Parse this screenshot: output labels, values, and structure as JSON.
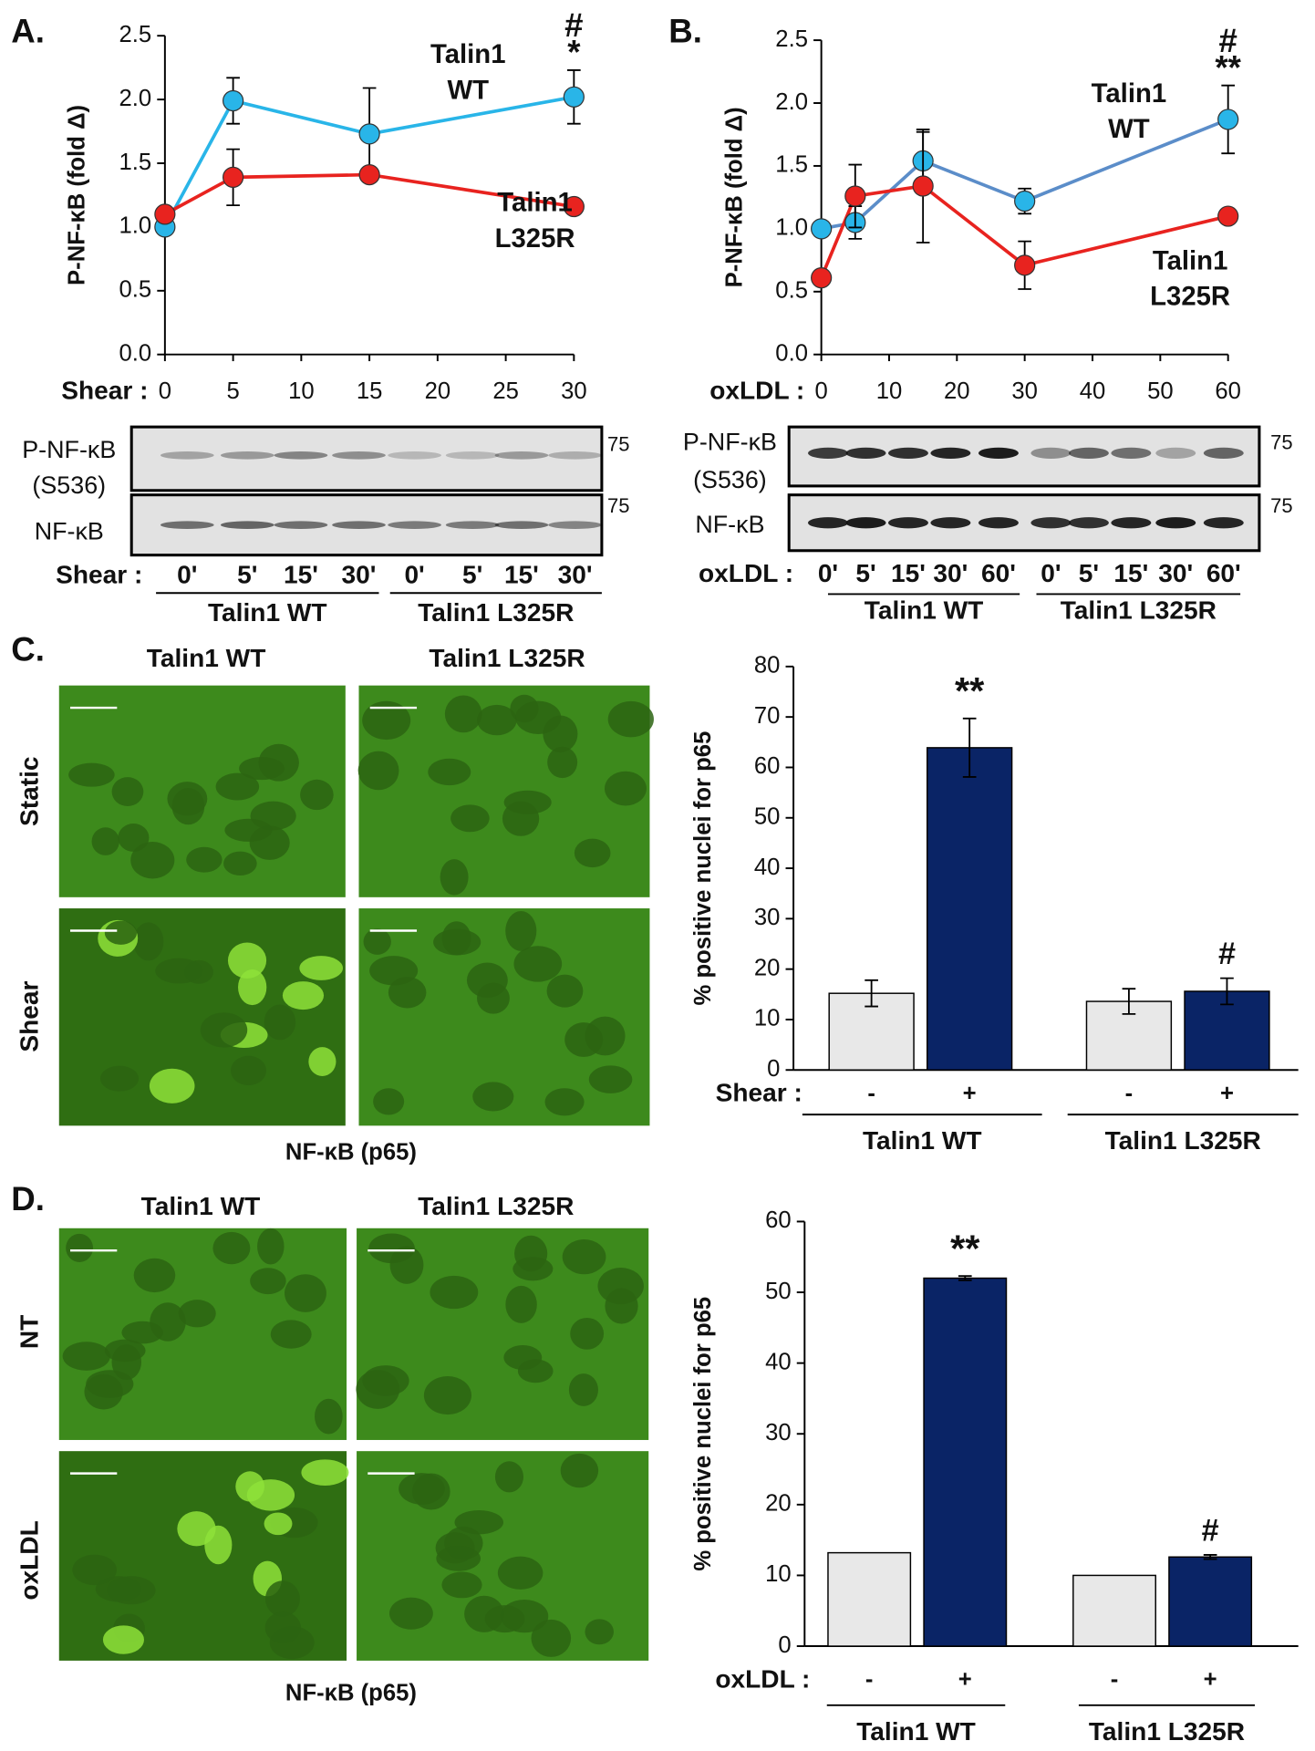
{
  "chart_data": [
    {
      "type": "line",
      "panel_label": "A.",
      "y_label": "P-NF-κB (fold Δ)",
      "x_label": "Shear :",
      "x": [
        0,
        5,
        15,
        30
      ],
      "xlim": [
        0,
        30
      ],
      "xticks": [
        0,
        5,
        10,
        15,
        20,
        25,
        30
      ],
      "ylim": [
        0,
        2.5
      ],
      "yticks": [
        {
          "value": 0,
          "label": "0.0"
        },
        0.5,
        {
          "value": 1,
          "label": "1.0"
        },
        1.5,
        {
          "value": 2,
          "label": "2.0"
        },
        2.5
      ],
      "series": [
        {
          "name": "Talin1 WT",
          "color": "#29b5e8",
          "values": [
            1.0,
            1.99,
            1.73,
            2.02
          ],
          "errors": [
            0,
            0.18,
            0.36,
            0.21
          ],
          "annotations": [
            null,
            null,
            null,
            [
              "#",
              "*"
            ]
          ]
        },
        {
          "name": "Talin1 L325R",
          "color": "#e8231f",
          "values": [
            1.1,
            1.39,
            1.41,
            1.16
          ],
          "errors": [
            0,
            0.22,
            0,
            0
          ]
        }
      ]
    },
    {
      "type": "line",
      "panel_label": "B.",
      "y_label": "P-NF-κB (fold Δ)",
      "x_label": "oxLDL :",
      "x": [
        0,
        5,
        15,
        30,
        60
      ],
      "xlim": [
        0,
        60
      ],
      "xticks": [
        0,
        10,
        20,
        30,
        40,
        50,
        60
      ],
      "ylim": [
        0,
        2.5
      ],
      "yticks": [
        {
          "value": 0,
          "label": "0.0"
        },
        0.5,
        {
          "value": 1,
          "label": "1.0"
        },
        1.5,
        {
          "value": 2,
          "label": "2.0"
        },
        2.5
      ],
      "series": [
        {
          "name": "Talin1 WT",
          "color": "#29b5e8",
          "line_color": "#5b8dc9",
          "values": [
            1.0,
            1.05,
            1.54,
            1.22,
            1.87
          ],
          "errors": [
            0,
            0.13,
            0.23,
            0.1,
            0.27
          ],
          "annotations": [
            null,
            null,
            null,
            null,
            [
              "#",
              "**"
            ]
          ]
        },
        {
          "name": "Talin1 L325R",
          "color": "#e8231f",
          "values": [
            0.61,
            1.26,
            1.34,
            0.71,
            1.1
          ],
          "errors": [
            0,
            0.25,
            0.45,
            0.19,
            0
          ]
        }
      ]
    },
    {
      "type": "bar",
      "panel_label": "C.",
      "y_label": "% positive nuclei for p65",
      "x_label": "Shear :",
      "categories": [
        "Talin1 WT",
        "Talin1 L325R"
      ],
      "ylim": [
        0,
        80
      ],
      "yticks": [
        0,
        10,
        20,
        30,
        40,
        50,
        60,
        70,
        80
      ],
      "series": [
        {
          "name": "-",
          "color": "#e8e8e8",
          "values": [
            15.2,
            13.6
          ],
          "errors": [
            2.6,
            2.5
          ]
        },
        {
          "name": "+",
          "color": "#0a2466",
          "values": [
            63.9,
            15.6
          ],
          "errors": [
            5.8,
            2.6
          ],
          "annotations": [
            "**",
            "#"
          ]
        }
      ]
    },
    {
      "type": "bar",
      "panel_label": "D.",
      "y_label": "% positive nuclei for p65",
      "x_label": "oxLDL :",
      "categories": [
        "Talin1 WT",
        "Talin1 L325R"
      ],
      "ylim": [
        0,
        60
      ],
      "yticks": [
        0,
        10,
        20,
        30,
        40,
        50,
        60
      ],
      "series": [
        {
          "name": "-",
          "color": "#e8e8e8",
          "values": [
            13.2,
            10.0
          ]
        },
        {
          "name": "+",
          "color": "#0a2466",
          "values": [
            52.0,
            12.6
          ],
          "errors": [
            0.3,
            0.3
          ],
          "annotations": [
            "**",
            "#"
          ]
        }
      ]
    }
  ],
  "blots": [
    {
      "rows": [
        {
          "label": [
            "P-NF-κB",
            "(S536)"
          ],
          "marker": "75"
        },
        {
          "label": [
            "NF-κB"
          ],
          "marker": "75"
        }
      ],
      "treatment": "Shear :",
      "lanes": [
        "0'",
        "5'",
        "15'",
        "30'",
        "0'",
        "5'",
        "15'",
        "30'"
      ],
      "groups": [
        "Talin1 WT",
        "Talin1 L325R"
      ]
    },
    {
      "rows": [
        {
          "label": [
            "P-NF-κB",
            "(S536)"
          ],
          "marker": "75"
        },
        {
          "label": [
            "NF-κB"
          ],
          "marker": "75"
        }
      ],
      "treatment": "oxLDL :",
      "lanes": [
        "0'",
        "5'",
        "15'",
        "30'",
        "60'",
        "0'",
        "5'",
        "15'",
        "30'",
        "60'"
      ],
      "groups": [
        "Talin1 WT",
        "Talin1 L325R"
      ]
    }
  ],
  "micrographs": [
    {
      "columns": [
        "Talin1 WT",
        "Talin1 L325R"
      ],
      "rows": [
        "Static",
        "Shear"
      ],
      "caption": "NF-κB (p65)"
    },
    {
      "columns": [
        "Talin1 WT",
        "Talin1 L325R"
      ],
      "rows": [
        "NT",
        "oxLDL"
      ],
      "caption": "NF-κB (p65)"
    }
  ]
}
